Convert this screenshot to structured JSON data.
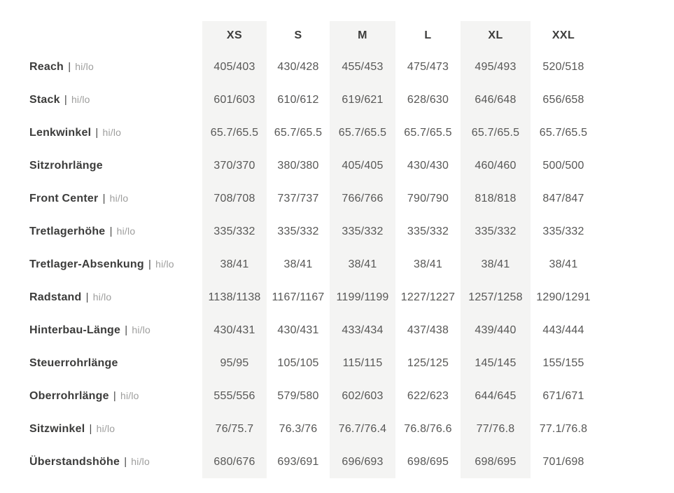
{
  "page": {
    "background_color": "#ffffff"
  },
  "table": {
    "corner_header": "",
    "size_headers": [
      "XS",
      "S",
      "M",
      "L",
      "XL",
      "XXL"
    ],
    "striped_columns": [
      0,
      2,
      4
    ],
    "label_separator": "|",
    "colors": {
      "stripe_background": "#f4f4f3",
      "header_text": "#3c3c3b",
      "label_text": "#3c3c3b",
      "suffix_text": "#9d9d9c",
      "value_text": "#575756"
    },
    "rows": [
      {
        "label": "Reach",
        "suffix": "hi/lo",
        "values": [
          "405/403",
          "430/428",
          "455/453",
          "475/473",
          "495/493",
          "520/518"
        ]
      },
      {
        "label": "Stack",
        "suffix": "hi/lo",
        "values": [
          "601/603",
          "610/612",
          "619/621",
          "628/630",
          "646/648",
          "656/658"
        ]
      },
      {
        "label": "Lenkwinkel",
        "suffix": "hi/lo",
        "values": [
          "65.7/65.5",
          "65.7/65.5",
          "65.7/65.5",
          "65.7/65.5",
          "65.7/65.5",
          "65.7/65.5"
        ]
      },
      {
        "label": "Sitzrohrlänge",
        "suffix": "",
        "values": [
          "370/370",
          "380/380",
          "405/405",
          "430/430",
          "460/460",
          "500/500"
        ]
      },
      {
        "label": "Front Center",
        "suffix": "hi/lo",
        "values": [
          "708/708",
          "737/737",
          "766/766",
          "790/790",
          "818/818",
          "847/847"
        ]
      },
      {
        "label": "Tretlagerhöhe",
        "suffix": "hi/lo",
        "values": [
          "335/332",
          "335/332",
          "335/332",
          "335/332",
          "335/332",
          "335/332"
        ]
      },
      {
        "label": "Tretlager-Absenkung",
        "suffix": "hi/lo",
        "values": [
          "38/41",
          "38/41",
          "38/41",
          "38/41",
          "38/41",
          "38/41"
        ]
      },
      {
        "label": "Radstand",
        "suffix": "hi/lo",
        "values": [
          "1138/1138",
          "1167/1167",
          "1199/1199",
          "1227/1227",
          "1257/1258",
          "1290/1291"
        ]
      },
      {
        "label": "Hinterbau-Länge",
        "suffix": "hi/lo",
        "values": [
          "430/431",
          "430/431",
          "433/434",
          "437/438",
          "439/440",
          "443/444"
        ]
      },
      {
        "label": "Steuerrohrlänge",
        "suffix": "",
        "values": [
          "95/95",
          "105/105",
          "115/115",
          "125/125",
          "145/145",
          "155/155"
        ]
      },
      {
        "label": "Oberrohrlänge",
        "suffix": "hi/lo",
        "values": [
          "555/556",
          "579/580",
          "602/603",
          "622/623",
          "644/645",
          "671/671"
        ]
      },
      {
        "label": "Sitzwinkel",
        "suffix": "hi/lo",
        "values": [
          "76/75.7",
          "76.3/76",
          "76.7/76.4",
          "76.8/76.6",
          "77/76.8",
          "77.1/76.8"
        ]
      },
      {
        "label": "Überstandshöhe",
        "suffix": "hi/lo",
        "values": [
          "680/676",
          "693/691",
          "696/693",
          "698/695",
          "698/695",
          "701/698"
        ]
      }
    ]
  }
}
